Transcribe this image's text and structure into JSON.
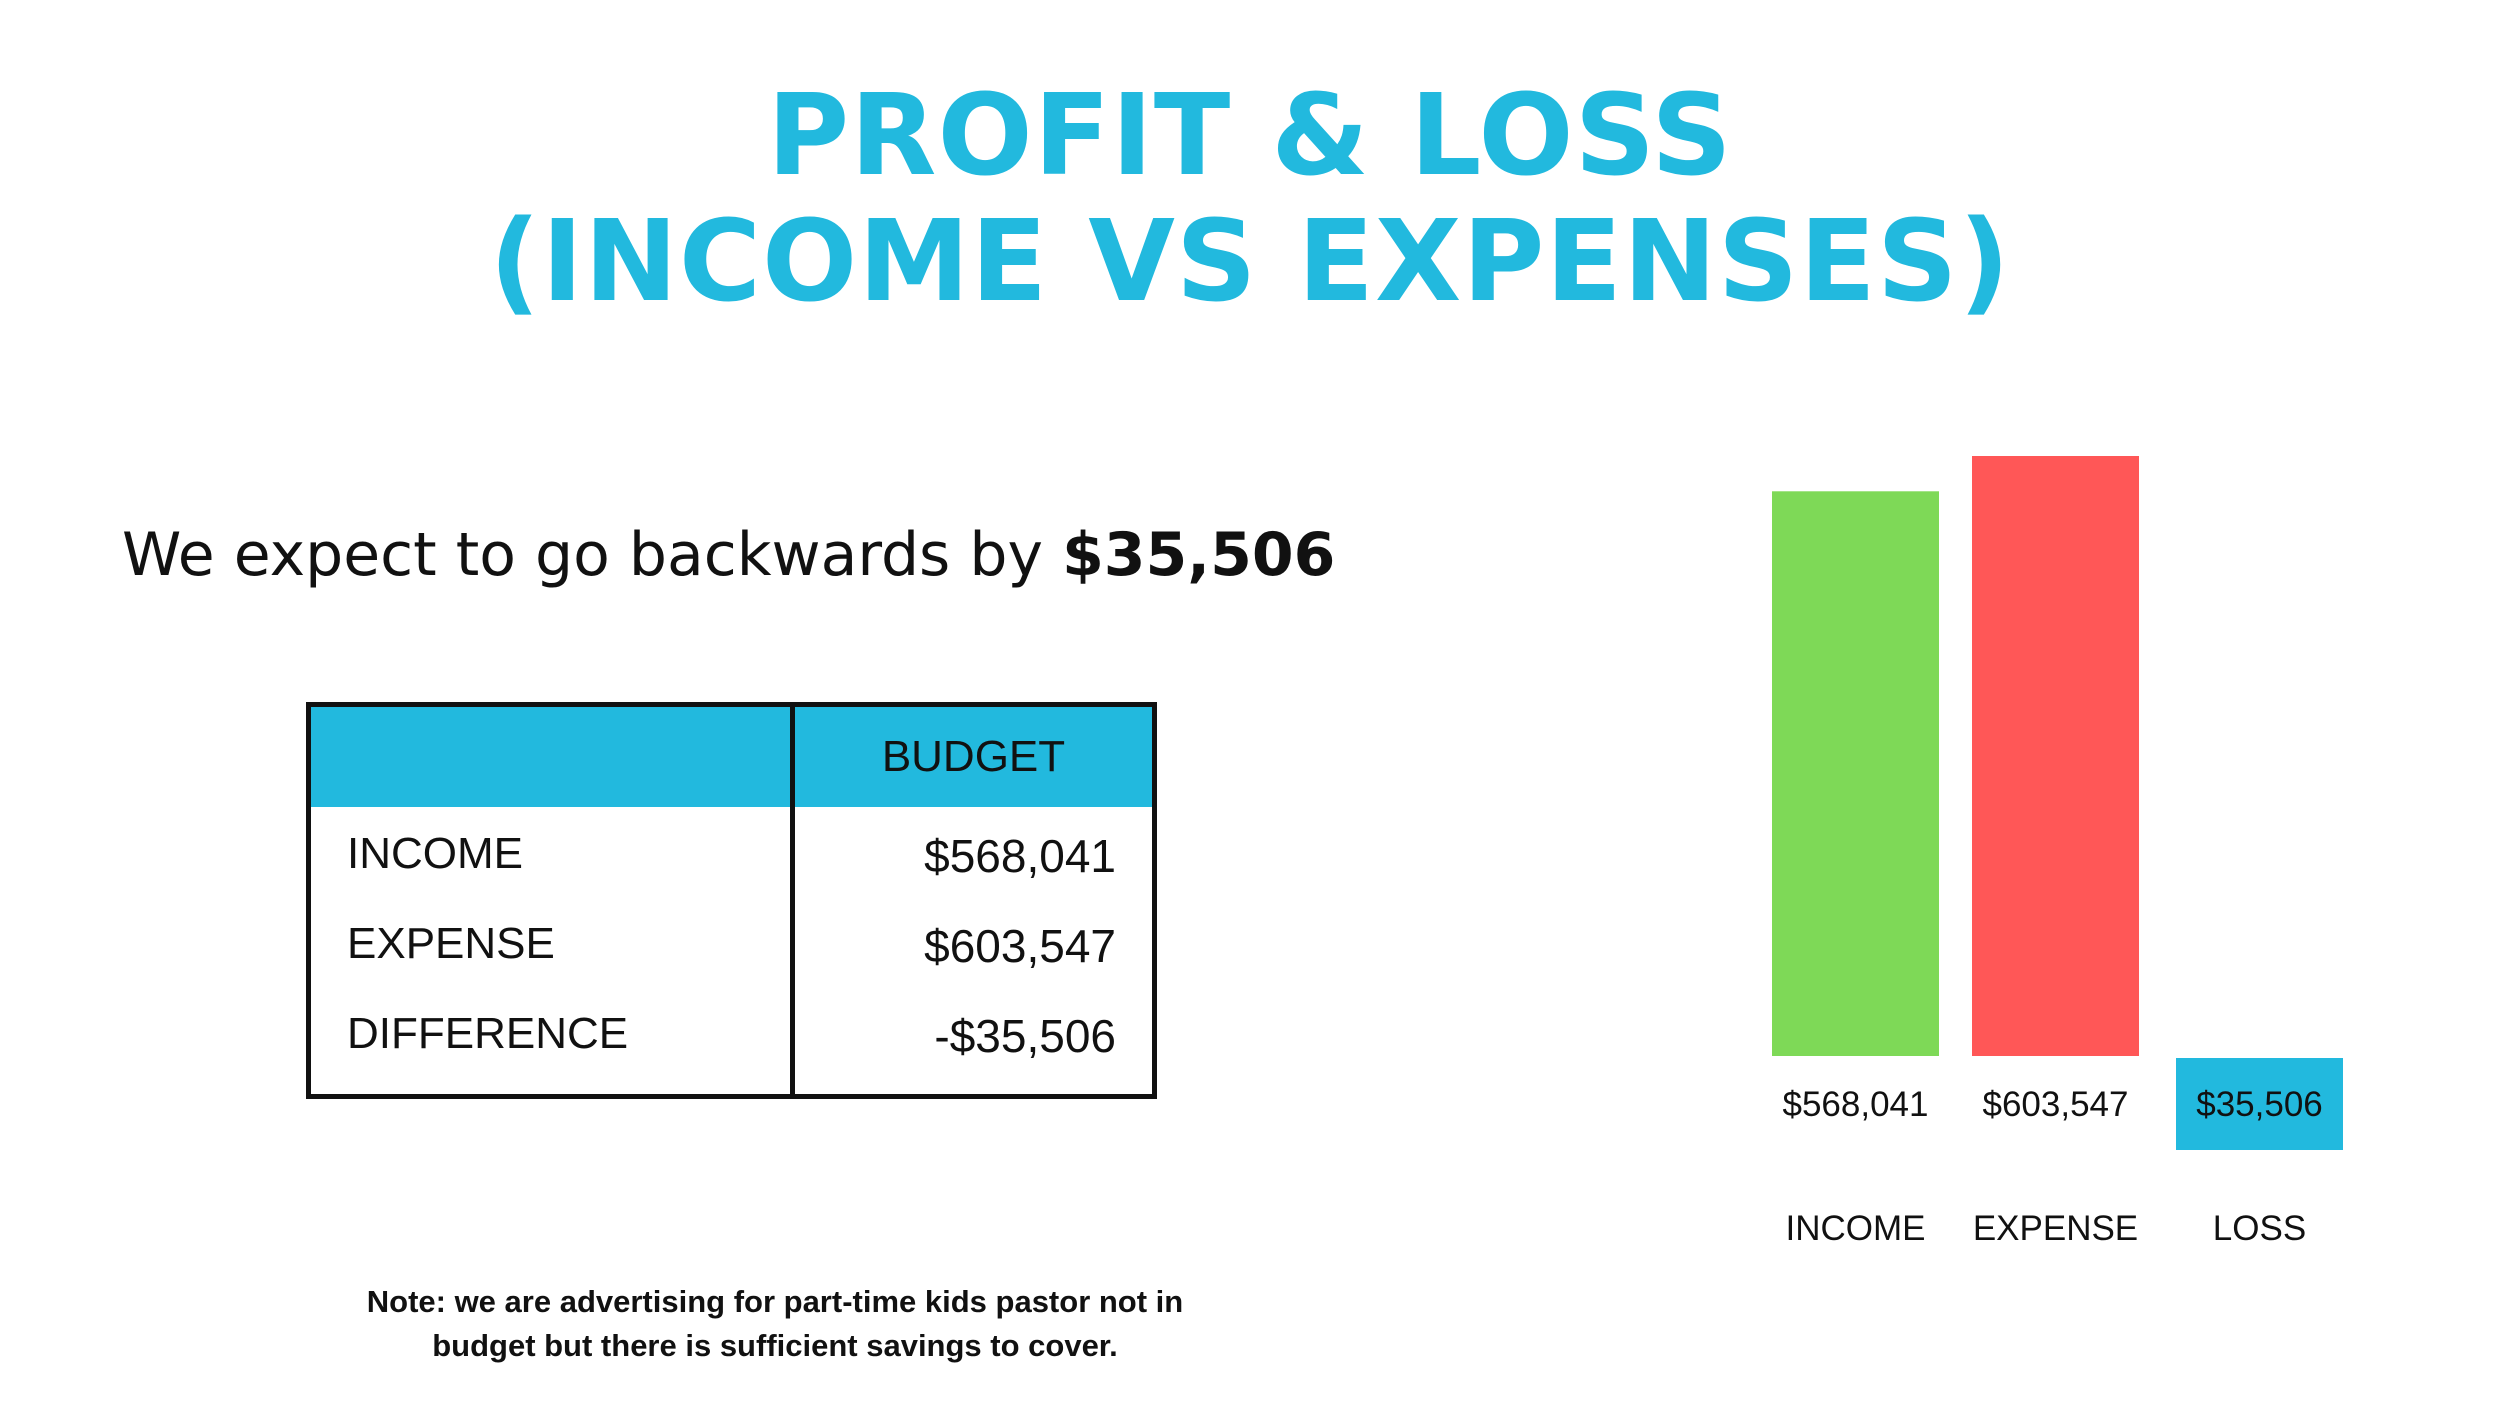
{
  "title": {
    "line1": "PROFIT & LOSS",
    "line2": "(INCOME VS EXPENSES)"
  },
  "subtitle": {
    "text": "We expect to go backwards by ",
    "amount": "$35,506"
  },
  "table": {
    "header": "BUDGET",
    "rows": [
      {
        "label": "INCOME",
        "value": "$568,041"
      },
      {
        "label": "EXPENSE",
        "value": "$603,547"
      },
      {
        "label": "DIFFERENCE",
        "value": "-$35,506"
      }
    ]
  },
  "note": {
    "line1": "Note: we are advertising for part-time kids pastor not in",
    "line2": "budget but there is sufficient savings to cover."
  },
  "colors": {
    "accent": "#22B9DE",
    "income": "#7ED957",
    "expense": "#FF5757",
    "loss": "#22B9DE"
  },
  "chart_data": {
    "type": "bar",
    "categories": [
      "INCOME",
      "EXPENSE",
      "LOSS"
    ],
    "values": [
      568041,
      603547,
      35506
    ],
    "value_labels": [
      "$568,041",
      "$603,547",
      "$35,506"
    ],
    "colors": [
      "#7ED957",
      "#FF5757",
      "#22B9DE"
    ],
    "ylim": [
      0,
      603547
    ],
    "grid": false
  }
}
